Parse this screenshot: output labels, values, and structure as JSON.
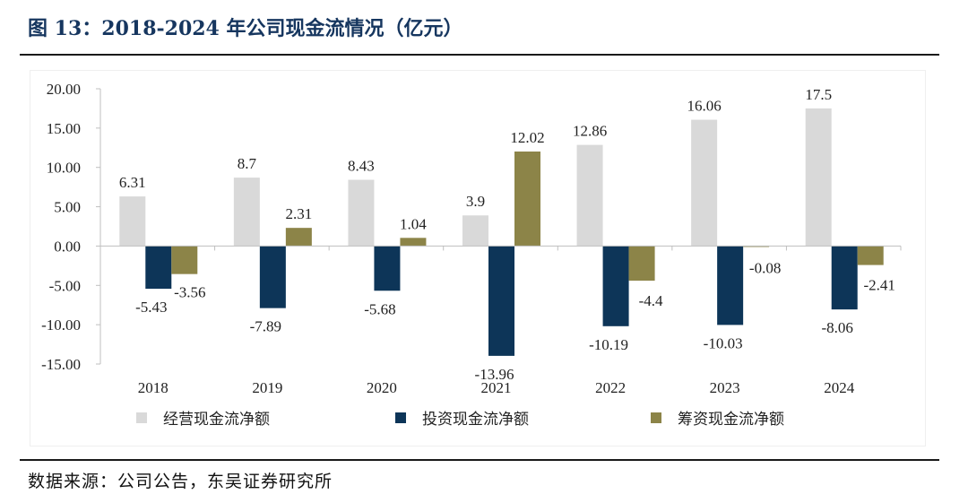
{
  "figure": {
    "title": "图 13：2018-2024 年公司现金流情况（亿元）",
    "source": "数据来源：公司公告，东吴证券研究所"
  },
  "chart_data": {
    "type": "bar",
    "title": "图 13：2018-2024 年公司现金流情况（亿元）",
    "xlabel": "",
    "ylabel": "",
    "ylim": [
      -15,
      20
    ],
    "yticks": [
      "20.00",
      "15.00",
      "10.00",
      "5.00",
      "0.00",
      "-5.00",
      "-10.00",
      "-15.00"
    ],
    "ytick_values": [
      20,
      15,
      10,
      5,
      0,
      -5,
      -10,
      -15
    ],
    "categories": [
      "2018",
      "2019",
      "2020",
      "2021",
      "2022",
      "2023",
      "2024"
    ],
    "legend_position": "bottom",
    "grid": false,
    "series": [
      {
        "name": "经营现金流净额",
        "color": "#d9d9d9",
        "values": [
          6.31,
          8.7,
          8.43,
          3.9,
          12.86,
          16.06,
          17.5
        ],
        "labels": [
          "6.31",
          "8.7",
          "8.43",
          "3.9",
          "12.86",
          "16.06",
          "17.5"
        ]
      },
      {
        "name": "投资现金流净额",
        "color": "#0d3558",
        "values": [
          -5.43,
          -7.89,
          -5.68,
          -13.96,
          -10.19,
          -10.03,
          -8.06
        ],
        "labels": [
          "-5.43",
          "-7.89",
          "-5.68",
          "-13.96",
          "-10.19",
          "-10.03",
          "-8.06"
        ]
      },
      {
        "name": "筹资现金流净额",
        "color": "#8c8448",
        "values": [
          -3.56,
          2.31,
          1.04,
          12.02,
          -4.4,
          -0.08,
          -2.41
        ],
        "labels": [
          "-3.56",
          "2.31",
          "1.04",
          "12.02",
          "-4.4",
          "-0.08",
          "-2.41"
        ]
      }
    ]
  }
}
